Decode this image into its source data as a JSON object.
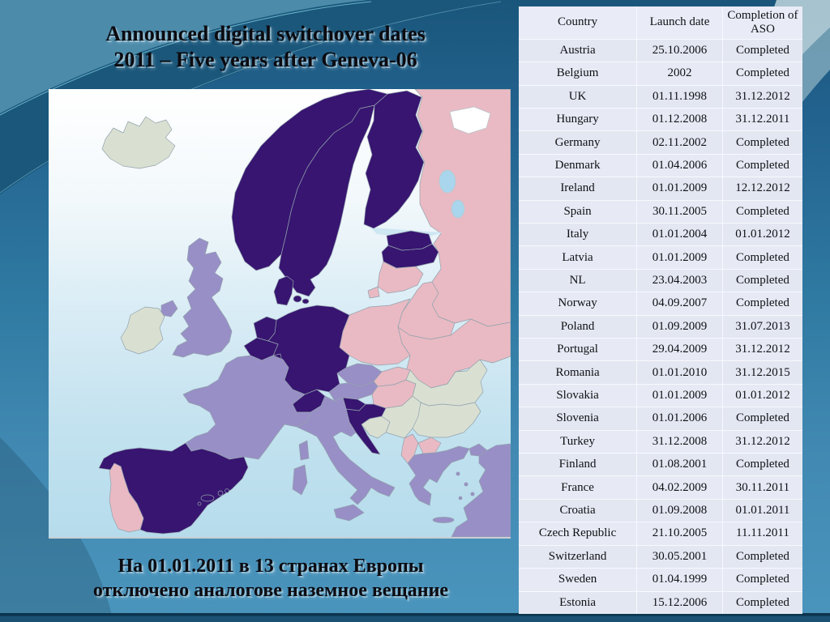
{
  "slide": {
    "title_line1": "Announced digital switchover dates",
    "title_line2": "2011 – Five years after Geneva-06",
    "caption_line1": "На 01.01.2011 в 13 странах Европы",
    "caption_line2": "отключено аналогове наземное вещание"
  },
  "table": {
    "columns": [
      "Country",
      "Launch date",
      "Completion of ASO"
    ],
    "rows": [
      [
        "Austria",
        "25.10.2006",
        "Completed"
      ],
      [
        "Belgium",
        "2002",
        "Completed"
      ],
      [
        "UK",
        "01.11.1998",
        "31.12.2012"
      ],
      [
        "Hungary",
        "01.12.2008",
        "31.12.2011"
      ],
      [
        "Germany",
        "02.11.2002",
        "Completed"
      ],
      [
        "Denmark",
        "01.04.2006",
        "Completed"
      ],
      [
        "Ireland",
        "01.01.2009",
        "12.12.2012"
      ],
      [
        "Spain",
        "30.11.2005",
        "Completed"
      ],
      [
        "Italy",
        "01.01.2004",
        "01.01.2012"
      ],
      [
        "Latvia",
        "01.01.2009",
        "Completed"
      ],
      [
        "NL",
        "23.04.2003",
        "Completed"
      ],
      [
        "Norway",
        "04.09.2007",
        "Completed"
      ],
      [
        "Poland",
        "01.09.2009",
        "31.07.2013"
      ],
      [
        "Portugal",
        "29.04.2009",
        "31.12.2012"
      ],
      [
        "Romania",
        "01.01.2010",
        "31.12.2015"
      ],
      [
        "Slovakia",
        "01.01.2009",
        "01.01.2012"
      ],
      [
        "Slovenia",
        "01.01.2006",
        "Completed"
      ],
      [
        "Turkey",
        "31.12.2008",
        "31.12.2012"
      ],
      [
        "Finland",
        "01.08.2001",
        "Completed"
      ],
      [
        "France",
        "04.02.2009",
        "30.11.2011"
      ],
      [
        "Croatia",
        "01.09.2008",
        "01.01.2011"
      ],
      [
        "Czech Republic",
        "21.10.2005",
        "11.11.2011"
      ],
      [
        "Switzerland",
        "30.05.2001",
        "Completed"
      ],
      [
        "Sweden",
        "01.04.1999",
        "Completed"
      ],
      [
        "Estonia",
        "15.12.2006",
        "Completed"
      ]
    ]
  },
  "map": {
    "colors": {
      "dark_purple": "#371570",
      "light_purple": "#988fc6",
      "pink": "#e9bac3",
      "pale_green": "#d9e0d2",
      "lake": "#a9d6ec",
      "white_sea": "#ffffff",
      "gulf": "#cde7f3"
    },
    "sea_gradient": [
      "#ffffff",
      "#f2f8fb",
      "#d9ecf5",
      "#c3e2ef",
      "#b6dcec"
    ],
    "countries": [
      {
        "id": "russia",
        "color": "pink"
      },
      {
        "id": "belarus",
        "color": "pink"
      },
      {
        "id": "ukraine",
        "color": "pink"
      },
      {
        "id": "moldova",
        "color": "pink"
      },
      {
        "id": "poland",
        "color": "pink"
      },
      {
        "id": "lithuania",
        "color": "pink"
      },
      {
        "id": "kaliningrad",
        "color": "pink"
      },
      {
        "id": "slovakia",
        "color": "pink"
      },
      {
        "id": "hungary",
        "color": "pink"
      },
      {
        "id": "portugal",
        "color": "pink"
      },
      {
        "id": "albania",
        "color": "pink"
      },
      {
        "id": "macedonia",
        "color": "pink"
      },
      {
        "id": "norway",
        "color": "dark_purple"
      },
      {
        "id": "sweden",
        "color": "dark_purple"
      },
      {
        "id": "finland",
        "color": "dark_purple"
      },
      {
        "id": "estonia",
        "color": "dark_purple"
      },
      {
        "id": "latvia",
        "color": "dark_purple"
      },
      {
        "id": "denmark",
        "color": "dark_purple"
      },
      {
        "id": "denmark-isles",
        "color": "dark_purple"
      },
      {
        "id": "germany",
        "color": "dark_purple"
      },
      {
        "id": "netherlands",
        "color": "dark_purple"
      },
      {
        "id": "belgium",
        "color": "dark_purple"
      },
      {
        "id": "luxembourg",
        "color": "dark_purple"
      },
      {
        "id": "switzerland",
        "color": "dark_purple"
      },
      {
        "id": "slovenia",
        "color": "dark_purple"
      },
      {
        "id": "croatia",
        "color": "dark_purple"
      },
      {
        "id": "spain",
        "color": "dark_purple"
      },
      {
        "id": "balearics",
        "color": "dark_purple"
      },
      {
        "id": "uk",
        "color": "light_purple"
      },
      {
        "id": "northern-ireland",
        "color": "light_purple"
      },
      {
        "id": "france",
        "color": "light_purple"
      },
      {
        "id": "austria",
        "color": "light_purple"
      },
      {
        "id": "czech",
        "color": "light_purple"
      },
      {
        "id": "italy",
        "color": "light_purple"
      },
      {
        "id": "sicily",
        "color": "light_purple"
      },
      {
        "id": "sardinia",
        "color": "light_purple"
      },
      {
        "id": "corsica",
        "color": "light_purple"
      },
      {
        "id": "greece",
        "color": "light_purple"
      },
      {
        "id": "greek-islands",
        "color": "light_purple"
      },
      {
        "id": "turkey",
        "color": "light_purple"
      },
      {
        "id": "turkey-eu",
        "color": "light_purple"
      },
      {
        "id": "iceland",
        "color": "pale_green"
      },
      {
        "id": "ireland",
        "color": "pale_green"
      },
      {
        "id": "romania",
        "color": "pale_green"
      },
      {
        "id": "bulgaria",
        "color": "pale_green"
      },
      {
        "id": "serbia",
        "color": "pale_green"
      },
      {
        "id": "bosnia",
        "color": "pale_green"
      }
    ]
  }
}
